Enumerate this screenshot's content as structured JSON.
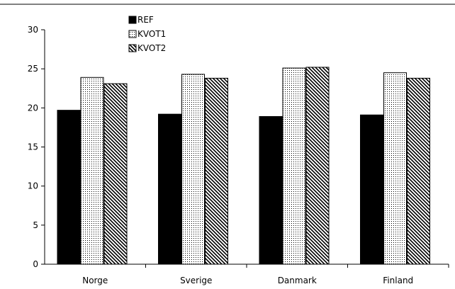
{
  "chart_data": {
    "type": "bar",
    "categories": [
      "Norge",
      "Sverige",
      "Danmark",
      "Finland"
    ],
    "series": [
      {
        "name": "REF",
        "fill": "solid",
        "values": [
          19.7,
          19.2,
          18.9,
          19.1
        ]
      },
      {
        "name": "KVOT1",
        "fill": "dotted",
        "values": [
          23.9,
          24.3,
          25.1,
          24.5
        ]
      },
      {
        "name": "KVOT2",
        "fill": "diag-hatch",
        "values": [
          23.1,
          23.8,
          25.2,
          23.8
        ]
      }
    ],
    "ylim": [
      0,
      30
    ],
    "yticks": [
      0,
      5,
      10,
      15,
      20,
      25,
      30
    ],
    "grid": false,
    "legend": "top-left",
    "colors": {
      "bar": "#000000",
      "background": "#ffffff"
    }
  }
}
